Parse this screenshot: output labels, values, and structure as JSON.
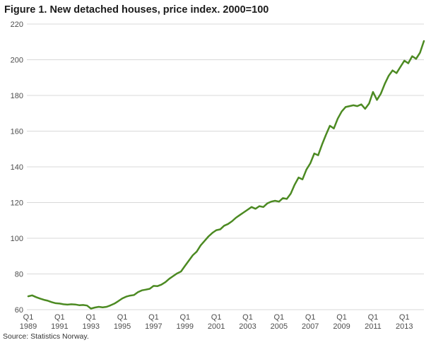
{
  "title": "Figure 1. New detached houses, price index. 2000=100",
  "source": "Source: Statistics Norway.",
  "colors": {
    "line": "#4c8a22",
    "grid": "#d9d9d9",
    "axis_text": "#4d4d4d"
  },
  "chart_data": {
    "type": "line",
    "title": "Figure 1. New detached houses, price index. 2000=100",
    "source": "Source: Statistics Norway.",
    "xlabel": "",
    "ylabel": "",
    "ylim": [
      60,
      220
    ],
    "yticks": [
      60,
      80,
      100,
      120,
      140,
      160,
      180,
      200,
      220
    ],
    "grid": true,
    "legend_position": "none",
    "x_frequency": "quarterly",
    "x_start": "1989Q1",
    "x_end": "2014Q2",
    "x_ticks": [
      {
        "index": 0,
        "top": "Q1",
        "bottom": "1989"
      },
      {
        "index": 8,
        "top": "Q1",
        "bottom": "1991"
      },
      {
        "index": 16,
        "top": "Q1",
        "bottom": "1993"
      },
      {
        "index": 24,
        "top": "Q1",
        "bottom": "1995"
      },
      {
        "index": 32,
        "top": "Q1",
        "bottom": "1997"
      },
      {
        "index": 40,
        "top": "Q1",
        "bottom": "1999"
      },
      {
        "index": 48,
        "top": "Q1",
        "bottom": "2001"
      },
      {
        "index": 56,
        "top": "Q1",
        "bottom": "2003"
      },
      {
        "index": 64,
        "top": "Q1",
        "bottom": "2005"
      },
      {
        "index": 72,
        "top": "Q1",
        "bottom": "2007"
      },
      {
        "index": 80,
        "top": "Q1",
        "bottom": "2009"
      },
      {
        "index": 88,
        "top": "Q1",
        "bottom": "2011"
      },
      {
        "index": 96,
        "top": "Q1",
        "bottom": "2013"
      }
    ],
    "x_quarters": [
      "1989Q1",
      "1989Q2",
      "1989Q3",
      "1989Q4",
      "1990Q1",
      "1990Q2",
      "1990Q3",
      "1990Q4",
      "1991Q1",
      "1991Q2",
      "1991Q3",
      "1991Q4",
      "1992Q1",
      "1992Q2",
      "1992Q3",
      "1992Q4",
      "1993Q1",
      "1993Q2",
      "1993Q3",
      "1993Q4",
      "1994Q1",
      "1994Q2",
      "1994Q3",
      "1994Q4",
      "1995Q1",
      "1995Q2",
      "1995Q3",
      "1995Q4",
      "1996Q1",
      "1996Q2",
      "1996Q3",
      "1996Q4",
      "1997Q1",
      "1997Q2",
      "1997Q3",
      "1997Q4",
      "1998Q1",
      "1998Q2",
      "1998Q3",
      "1998Q4",
      "1999Q1",
      "1999Q2",
      "1999Q3",
      "1999Q4",
      "2000Q1",
      "2000Q2",
      "2000Q3",
      "2000Q4",
      "2001Q1",
      "2001Q2",
      "2001Q3",
      "2001Q4",
      "2002Q1",
      "2002Q2",
      "2002Q3",
      "2002Q4",
      "2003Q1",
      "2003Q2",
      "2003Q3",
      "2003Q4",
      "2004Q1",
      "2004Q2",
      "2004Q3",
      "2004Q4",
      "2005Q1",
      "2005Q2",
      "2005Q3",
      "2005Q4",
      "2006Q1",
      "2006Q2",
      "2006Q3",
      "2006Q4",
      "2007Q1",
      "2007Q2",
      "2007Q3",
      "2007Q4",
      "2008Q1",
      "2008Q2",
      "2008Q3",
      "2008Q4",
      "2009Q1",
      "2009Q2",
      "2009Q3",
      "2009Q4",
      "2010Q1",
      "2010Q2",
      "2010Q3",
      "2010Q4",
      "2011Q1",
      "2011Q2",
      "2011Q3",
      "2011Q4",
      "2012Q1",
      "2012Q2",
      "2012Q3",
      "2012Q4",
      "2013Q1",
      "2013Q2",
      "2013Q3",
      "2013Q4",
      "2014Q1",
      "2014Q2"
    ],
    "series": [
      {
        "name": "New detached houses, price index (2000=100)",
        "color": "#4c8a22",
        "values": [
          67.5,
          68.0,
          67.0,
          66.2,
          65.5,
          65.0,
          64.2,
          63.6,
          63.4,
          63.0,
          62.8,
          63.0,
          62.9,
          62.5,
          62.6,
          62.3,
          60.6,
          61.2,
          61.6,
          61.3,
          61.6,
          62.4,
          63.4,
          64.8,
          66.3,
          67.3,
          67.9,
          68.2,
          69.8,
          70.8,
          71.2,
          71.7,
          73.3,
          73.2,
          74.0,
          75.4,
          77.3,
          78.8,
          80.3,
          81.4,
          84.5,
          87.5,
          90.5,
          92.5,
          96.0,
          98.5,
          101.0,
          103.0,
          104.5,
          105.0,
          107.0,
          108.0,
          109.5,
          111.5,
          113.0,
          114.5,
          116.0,
          117.5,
          116.5,
          118.0,
          117.5,
          119.5,
          120.5,
          121.0,
          120.5,
          122.5,
          122.0,
          125.0,
          130.0,
          134.0,
          133.0,
          138.5,
          142.0,
          147.5,
          146.5,
          152.5,
          158.0,
          163.0,
          161.5,
          167.0,
          171.0,
          173.5,
          174.0,
          174.5,
          174.0,
          175.0,
          172.5,
          175.5,
          182.0,
          177.5,
          181.0,
          186.5,
          191.0,
          194.0,
          192.5,
          196.0,
          199.5,
          198.0,
          202.0,
          200.5,
          204.0,
          210.5
        ]
      }
    ]
  }
}
